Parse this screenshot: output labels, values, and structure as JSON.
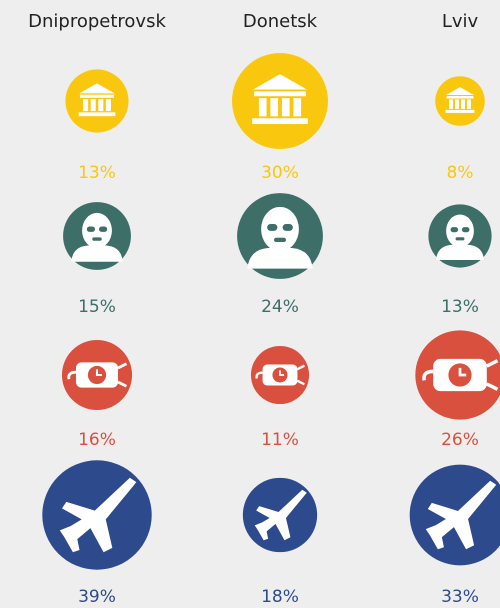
{
  "chart_data": {
    "type": "bubble",
    "categories": [
      "Dnipropetrovsk",
      "Donetsk",
      "Lviv"
    ],
    "series": [
      {
        "color": "#f9c80e",
        "values": [
          13,
          30,
          8
        ],
        "value_labels": [
          "13%",
          "30%",
          "8%"
        ]
      },
      {
        "color": "#3d6e68",
        "values": [
          15,
          24,
          13
        ],
        "value_labels": [
          "15%",
          "24%",
          "13%"
        ]
      },
      {
        "color": "#d9503f",
        "values": [
          16,
          11,
          26
        ],
        "value_labels": [
          "16%",
          "11%",
          "26%"
        ]
      },
      {
        "color": "#2d4b8c",
        "values": [
          39,
          18,
          33
        ],
        "value_labels": [
          "39%",
          "18%",
          "33%"
        ]
      }
    ]
  }
}
